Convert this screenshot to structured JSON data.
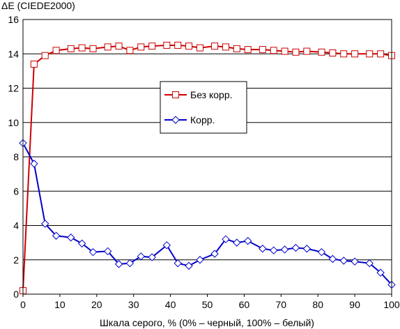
{
  "chart_data": {
    "type": "line",
    "ylabel": "ΔE (CIEDE2000)",
    "xlabel": "Шкала серого, % (0% – черный, 100% – белый)",
    "xlim": [
      0,
      100
    ],
    "ylim": [
      0,
      16
    ],
    "xticks": [
      0,
      10,
      20,
      30,
      40,
      50,
      60,
      70,
      80,
      90,
      100
    ],
    "yticks": [
      0,
      2,
      4,
      6,
      8,
      10,
      12,
      14,
      16
    ],
    "grid": "horizontal",
    "legend": "inside-center",
    "series": [
      {
        "name": "Без корр.",
        "color": "#cc0000",
        "marker": "square",
        "x": [
          0,
          3,
          6,
          9,
          13,
          16,
          19,
          23,
          26,
          29,
          32,
          35,
          39,
          42,
          45,
          48,
          52,
          55,
          58,
          61,
          65,
          68,
          71,
          74,
          77,
          81,
          84,
          87,
          90,
          94,
          97,
          100
        ],
        "y": [
          0.2,
          13.4,
          13.9,
          14.2,
          14.3,
          14.35,
          14.3,
          14.4,
          14.45,
          14.2,
          14.4,
          14.45,
          14.5,
          14.5,
          14.45,
          14.35,
          14.45,
          14.4,
          14.3,
          14.25,
          14.25,
          14.2,
          14.15,
          14.1,
          14.15,
          14.1,
          14.05,
          14.0,
          14.0,
          14.0,
          14.0,
          13.9
        ]
      },
      {
        "name": "Корр.",
        "color": "#0000cc",
        "marker": "diamond",
        "x": [
          0,
          3,
          6,
          9,
          13,
          16,
          19,
          23,
          26,
          29,
          32,
          35,
          39,
          42,
          45,
          48,
          52,
          55,
          58,
          61,
          65,
          68,
          71,
          74,
          77,
          81,
          84,
          87,
          90,
          94,
          97,
          100
        ],
        "y": [
          8.8,
          7.6,
          4.1,
          3.4,
          3.3,
          2.95,
          2.45,
          2.5,
          1.75,
          1.8,
          2.2,
          2.15,
          2.85,
          1.8,
          1.65,
          2.0,
          2.35,
          3.2,
          3.0,
          3.1,
          2.65,
          2.55,
          2.6,
          2.7,
          2.65,
          2.45,
          2.05,
          1.95,
          1.9,
          1.8,
          1.25,
          0.55
        ]
      }
    ]
  }
}
